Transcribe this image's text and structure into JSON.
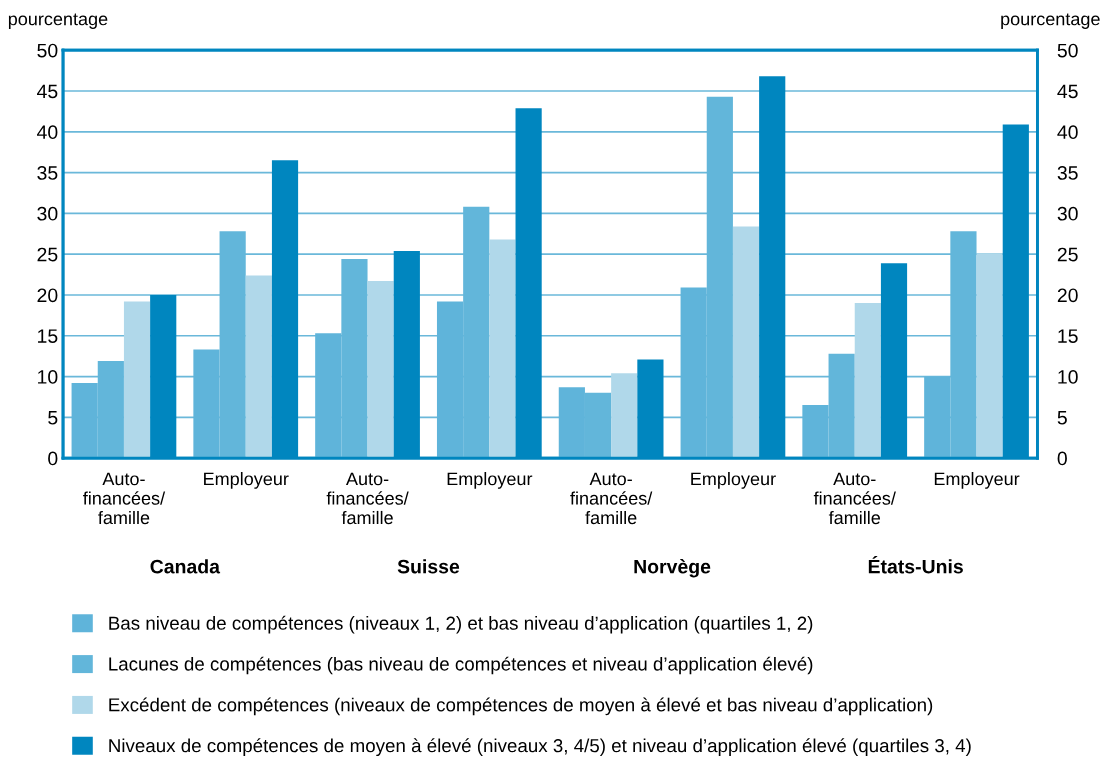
{
  "chart_data": {
    "type": "bar",
    "categories": [
      "Auto-\nfinancées/\nfamille",
      "Employeur",
      "Auto-\nfinancées/\nfamille",
      "Employeur",
      "Auto-\nfinancées/\nfamille",
      "Employeur",
      "Auto-\nfinancées/\nfamille",
      "Employeur"
    ],
    "series": [
      {
        "name": "Bas niveau de compétences (niveaux 1, 2) et bas niveau d’application (quartiles 1, 2)",
        "color": "#5fb4da",
        "values": [
          9.2,
          13.3,
          15.3,
          19.2,
          8.7,
          20.9,
          6.5,
          10.0
        ]
      },
      {
        "name": "Lacunes de compétences (bas niveau de compétences et niveau d’application élevé)",
        "color": "#62b6da",
        "values": [
          11.9,
          27.8,
          24.4,
          30.8,
          8.0,
          44.3,
          12.8,
          27.8
        ]
      },
      {
        "name": "Excédent de compétences (niveaux de compétences de moyen à élevé et bas niveau d’application)",
        "color": "#b0d8ea",
        "values": [
          19.2,
          22.4,
          21.7,
          26.8,
          10.4,
          28.4,
          19.0,
          25.1
        ]
      },
      {
        "name": "Niveaux de compétences de moyen à élevé (niveaux 3, 4/5) et niveau d’application élevé (quartiles 3, 4)",
        "color": "#0086bf",
        "values": [
          20.0,
          36.5,
          25.4,
          42.9,
          12.1,
          46.8,
          23.9,
          40.9
        ]
      }
    ],
    "annotations": [
      "Canada",
      "Suisse",
      "Norvège",
      "États-Unis"
    ],
    "ylabel": "pourcentage",
    "y2label": "pourcentage",
    "ylim": [
      0,
      50
    ],
    "yticks": [
      0,
      5,
      10,
      15,
      20,
      25,
      30,
      35,
      40,
      45,
      50
    ],
    "y2lim": [
      0,
      50
    ],
    "y2ticks": [
      0,
      5,
      10,
      15,
      20,
      25,
      30,
      35,
      40,
      45,
      50
    ],
    "grid": "y",
    "legend": "bottom"
  }
}
